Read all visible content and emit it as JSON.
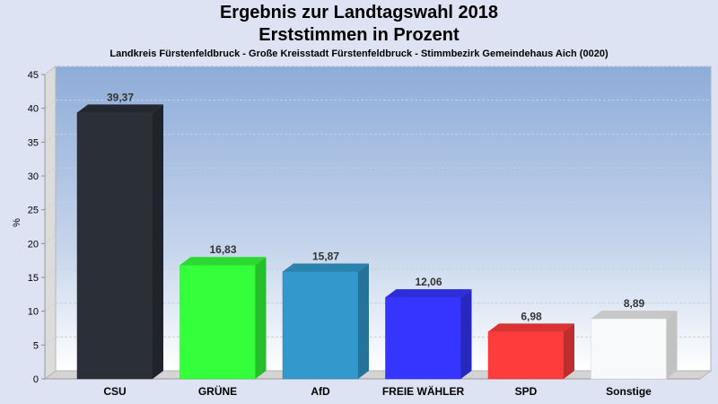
{
  "chart_data": {
    "type": "bar",
    "title": "Ergebnis zur Landtagswahl 2018",
    "subtitle": "Erststimmen in Prozent",
    "caption": "Landkreis Fürstenfeldbruck - Große Kreisstadt Fürstenfeldbruck - Stimmbezirk Gemeindehaus Aich (0020)",
    "xlabel": "",
    "ylabel": "%",
    "ylim": [
      0,
      45
    ],
    "yticks": [
      "0",
      "5",
      "10",
      "15",
      "20",
      "25",
      "30",
      "35",
      "40",
      "45"
    ],
    "grid": true,
    "categories": [
      "CSU",
      "GRÜNE",
      "AfD",
      "FREIE WÄHLER",
      "SPD",
      "Sonstige"
    ],
    "values": [
      39.37,
      16.83,
      15.87,
      12.06,
      6.98,
      8.89
    ],
    "labels": [
      "39,37",
      "16,83",
      "15,87",
      "12,06",
      "6,98",
      "8,89"
    ],
    "colors": [
      "#2b2f38",
      "#33ff3b",
      "#3399cc",
      "#3535ff",
      "#ff3c3c",
      "#ffffff"
    ]
  }
}
